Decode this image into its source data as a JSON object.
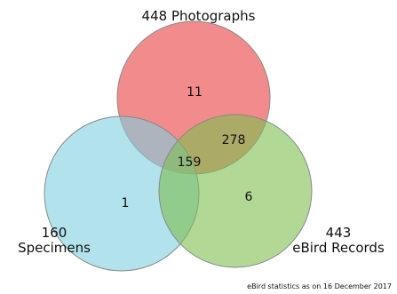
{
  "sets": {
    "photographs": {
      "count": "448",
      "label": "Photographs",
      "color": "#ee6666"
    },
    "specimens": {
      "count": "160",
      "label": "Specimens",
      "color": "#7fcfe0"
    },
    "ebird": {
      "count": "443",
      "label": "eBird Records",
      "color": "#7dbe4e"
    }
  },
  "regions": {
    "photographs_only": "11",
    "specimens_only": "1",
    "ebird_only": "6",
    "photographs_ebird": "278",
    "all_three": "159"
  },
  "footnote": "eBird statistics as on 16 December 2017"
}
